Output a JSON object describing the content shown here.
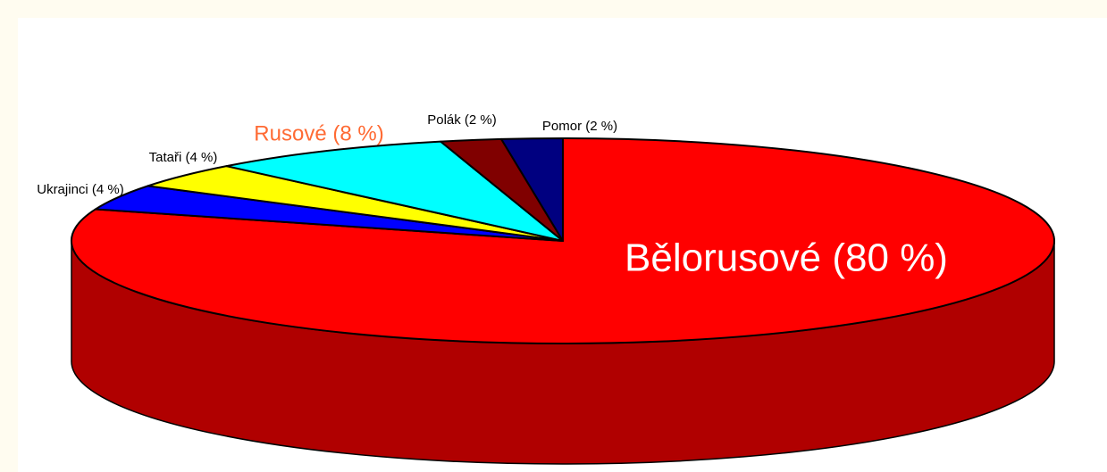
{
  "chart_data": {
    "type": "pie3d",
    "categories": [
      "Bělorusové (80 %)",
      "Ukrajinci (4 %)",
      "Tataři (4 %)",
      "Rusové (8 %)",
      "Polák (2 %)",
      "Pomor (2 %)"
    ],
    "values": [
      80,
      4,
      4,
      8,
      2,
      2
    ],
    "colors": [
      "#ff0000",
      "#0000ff",
      "#ffff00",
      "#00ffff",
      "#800000",
      "#000080"
    ]
  }
}
